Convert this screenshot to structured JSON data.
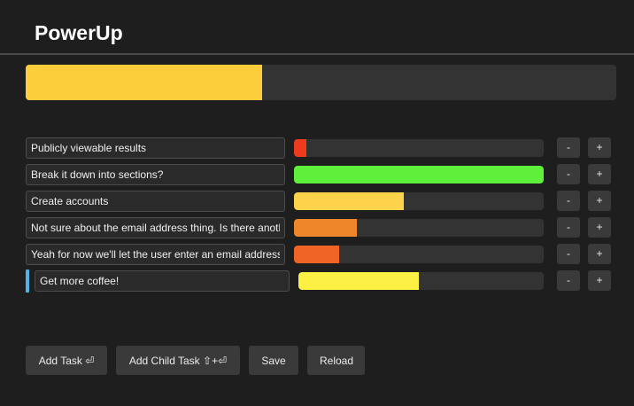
{
  "app": {
    "title": "PowerUp"
  },
  "overall": {
    "progress": 0.4,
    "color": "#fcce3c"
  },
  "tasks": [
    {
      "text": "Publicly viewable results",
      "progress": 0.05,
      "color": "#ee3b1e",
      "child": false
    },
    {
      "text": "Break it down into sections?",
      "progress": 1.0,
      "color": "#5ef03a",
      "child": false
    },
    {
      "text": "Create accounts",
      "progress": 0.44,
      "color": "#fcd34a",
      "child": false
    },
    {
      "text": "Not sure about the email address thing. Is there another way?",
      "progress": 0.25,
      "color": "#f0862a",
      "child": false
    },
    {
      "text": "Yeah for now we'll let the user enter an email address, and that's it",
      "progress": 0.18,
      "color": "#f06526",
      "child": false
    },
    {
      "text": "Get more coffee!",
      "progress": 0.49,
      "color": "#fdf044",
      "child": true
    }
  ],
  "controls": {
    "minus_label": "-",
    "plus_label": "+"
  },
  "footer": {
    "add_task": "Add Task ⏎",
    "add_child_task": "Add Child Task ⇧+⏎",
    "save": "Save",
    "reload": "Reload"
  }
}
